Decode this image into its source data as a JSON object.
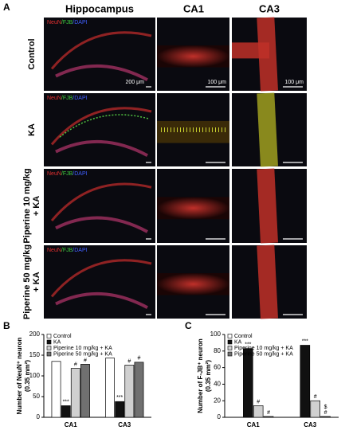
{
  "panel_a": {
    "label": "A",
    "columns": [
      "Hippocampus",
      "CA1",
      "CA3"
    ],
    "rows": [
      [
        "Control"
      ],
      [
        "KA"
      ],
      [
        "Piperine 10 mg/kg",
        "+ KA"
      ],
      [
        "Piperine 50 mg/kg",
        "+ KA"
      ]
    ],
    "stain_label": [
      "NeuN",
      "/FJB",
      "/DAPI"
    ],
    "scale_bars": [
      "200 μm",
      "100 μm",
      "100 μm"
    ]
  },
  "chart_data": [
    {
      "type": "bar",
      "panel": "B",
      "ylabel": [
        "Number of NeuN⁺ neuron",
        "(0.35 mm²)"
      ],
      "categories": [
        "CA1",
        "CA3"
      ],
      "ylim": [
        0,
        200
      ],
      "yticks": [
        0,
        50,
        100,
        150,
        200
      ],
      "series": [
        {
          "name": "Control",
          "color": "#ffffff",
          "values": [
            135,
            143
          ]
        },
        {
          "name": "KA",
          "color": "#111111",
          "values": [
            28,
            38
          ],
          "labels": [
            [
              "***"
            ],
            [
              "***"
            ]
          ]
        },
        {
          "name": "Piperine 10 mg/kg + KA",
          "color": "#d0d0d0",
          "values": [
            118,
            126
          ],
          "labels": [
            [
              "#"
            ],
            [
              "#"
            ]
          ]
        },
        {
          "name": "Piperine 50 mg/kg + KA",
          "color": "#707070",
          "values": [
            128,
            133
          ],
          "labels": [
            [
              "#"
            ],
            [
              "#"
            ]
          ]
        }
      ]
    },
    {
      "type": "bar",
      "panel": "C",
      "ylabel": [
        "Number of F-JB⁺ neuron",
        "(0.35 mm²)"
      ],
      "categories": [
        "CA1",
        "CA3"
      ],
      "ylim": [
        0,
        100
      ],
      "yticks": [
        0,
        20,
        40,
        60,
        80,
        100
      ],
      "series": [
        {
          "name": "Control",
          "color": "#ffffff",
          "values": [
            0,
            0
          ]
        },
        {
          "name": "KA",
          "color": "#111111",
          "values": [
            83,
            87
          ],
          "labels": [
            [
              "***"
            ],
            [
              "***"
            ]
          ]
        },
        {
          "name": "Piperine 10 mg/kg + KA",
          "color": "#d0d0d0",
          "values": [
            14,
            20
          ],
          "labels": [
            [
              "#"
            ],
            [
              "#"
            ]
          ]
        },
        {
          "name": "Piperine 50 mg/kg + KA",
          "color": "#707070",
          "values": [
            1,
            1
          ],
          "labels": [
            [
              "#"
            ],
            [
              "$",
              "#"
            ]
          ]
        }
      ]
    }
  ]
}
